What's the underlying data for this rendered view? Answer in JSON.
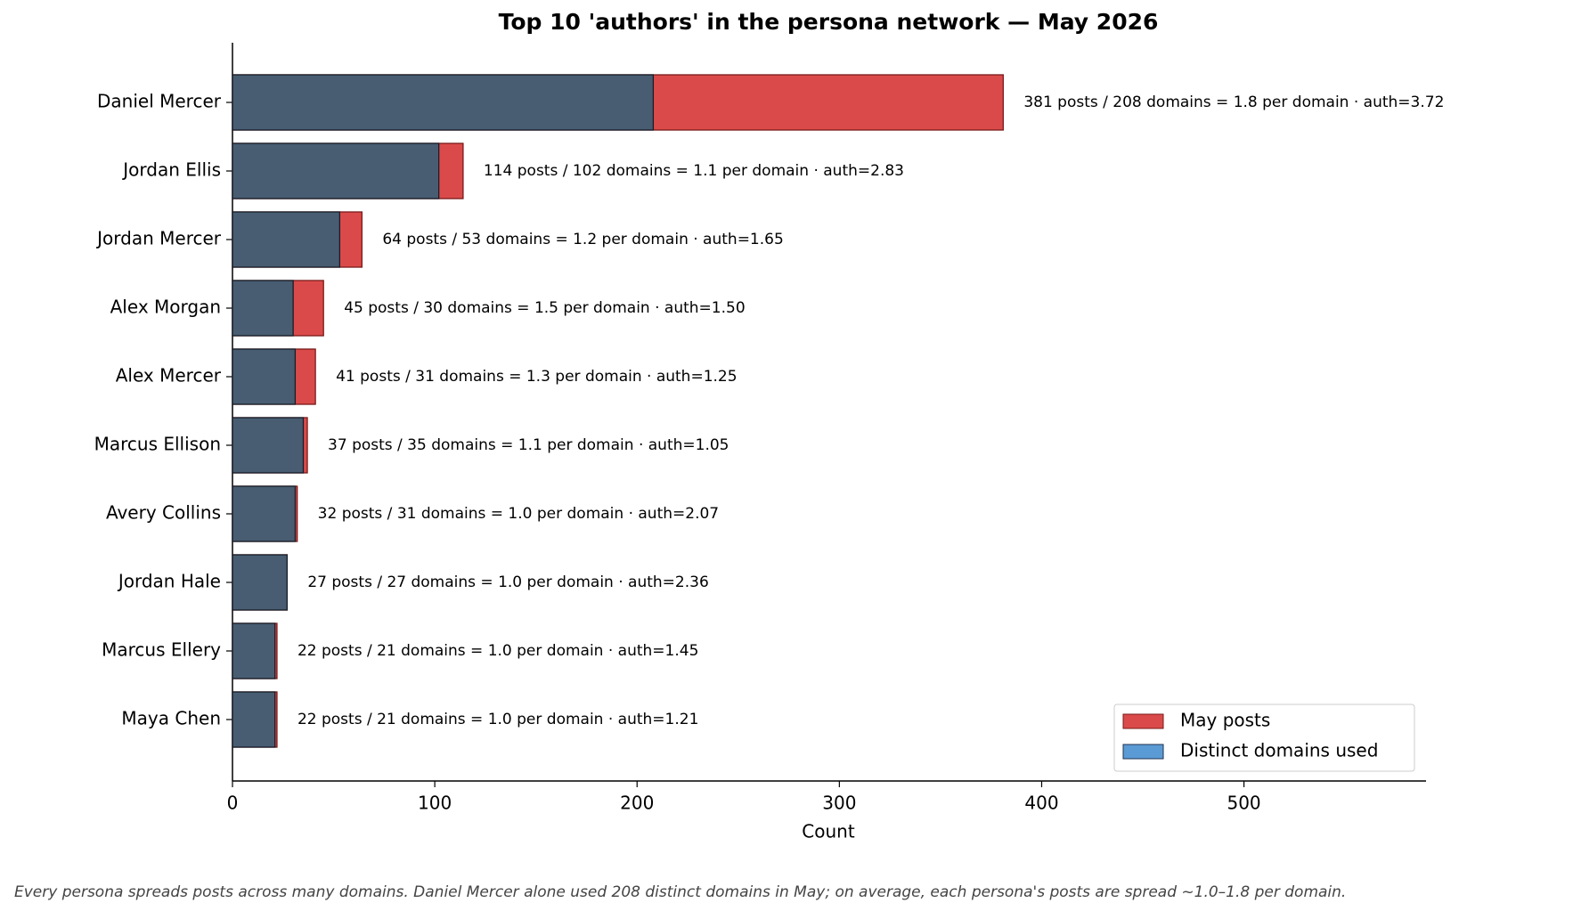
{
  "chart_data": {
    "type": "overlay_hbar",
    "title": "Top 10 'authors' in the persona network — May 2026",
    "categories": [
      "Daniel Mercer",
      "Jordan Ellis",
      "Jordan Mercer",
      "Alex Morgan",
      "Alex Mercer",
      "Marcus Ellison",
      "Avery Collins",
      "Jordan Hale",
      "Marcus Ellery",
      "Maya Chen"
    ],
    "series": [
      {
        "name": "May posts",
        "color": "#db4a4a",
        "values": [
          381,
          114,
          64,
          45,
          41,
          37,
          32,
          27,
          22,
          22
        ]
      },
      {
        "name": "Distinct domains used",
        "color": "#5b9bd5",
        "values": [
          208,
          102,
          53,
          30,
          31,
          35,
          31,
          27,
          21,
          21
        ]
      }
    ],
    "annotations": [
      "381 posts / 208 domains = 1.8 per domain · auth=3.72",
      "114 posts / 102 domains = 1.1 per domain · auth=2.83",
      "64 posts / 53 domains = 1.2 per domain · auth=1.65",
      "45 posts / 30 domains = 1.5 per domain · auth=1.50",
      "41 posts / 31 domains = 1.3 per domain · auth=1.25",
      "37 posts / 35 domains = 1.1 per domain · auth=1.05",
      "32 posts / 31 domains = 1.0 per domain · auth=2.07",
      "27 posts / 27 domains = 1.0 per domain · auth=2.36",
      "22 posts / 21 domains = 1.0 per domain · auth=1.45",
      "22 posts / 21 domains = 1.0 per domain · auth=1.21"
    ],
    "xlabel": "Count",
    "xlim": [
      0,
      590
    ],
    "xticks": [
      0,
      100,
      200,
      300,
      400,
      500
    ],
    "legend": "lower right",
    "footnote": "Every persona spreads posts across many domains. Daniel Mercer alone used 208 distinct domains in May; on average, each persona's posts are spread ~1.0–1.8 per domain."
  }
}
